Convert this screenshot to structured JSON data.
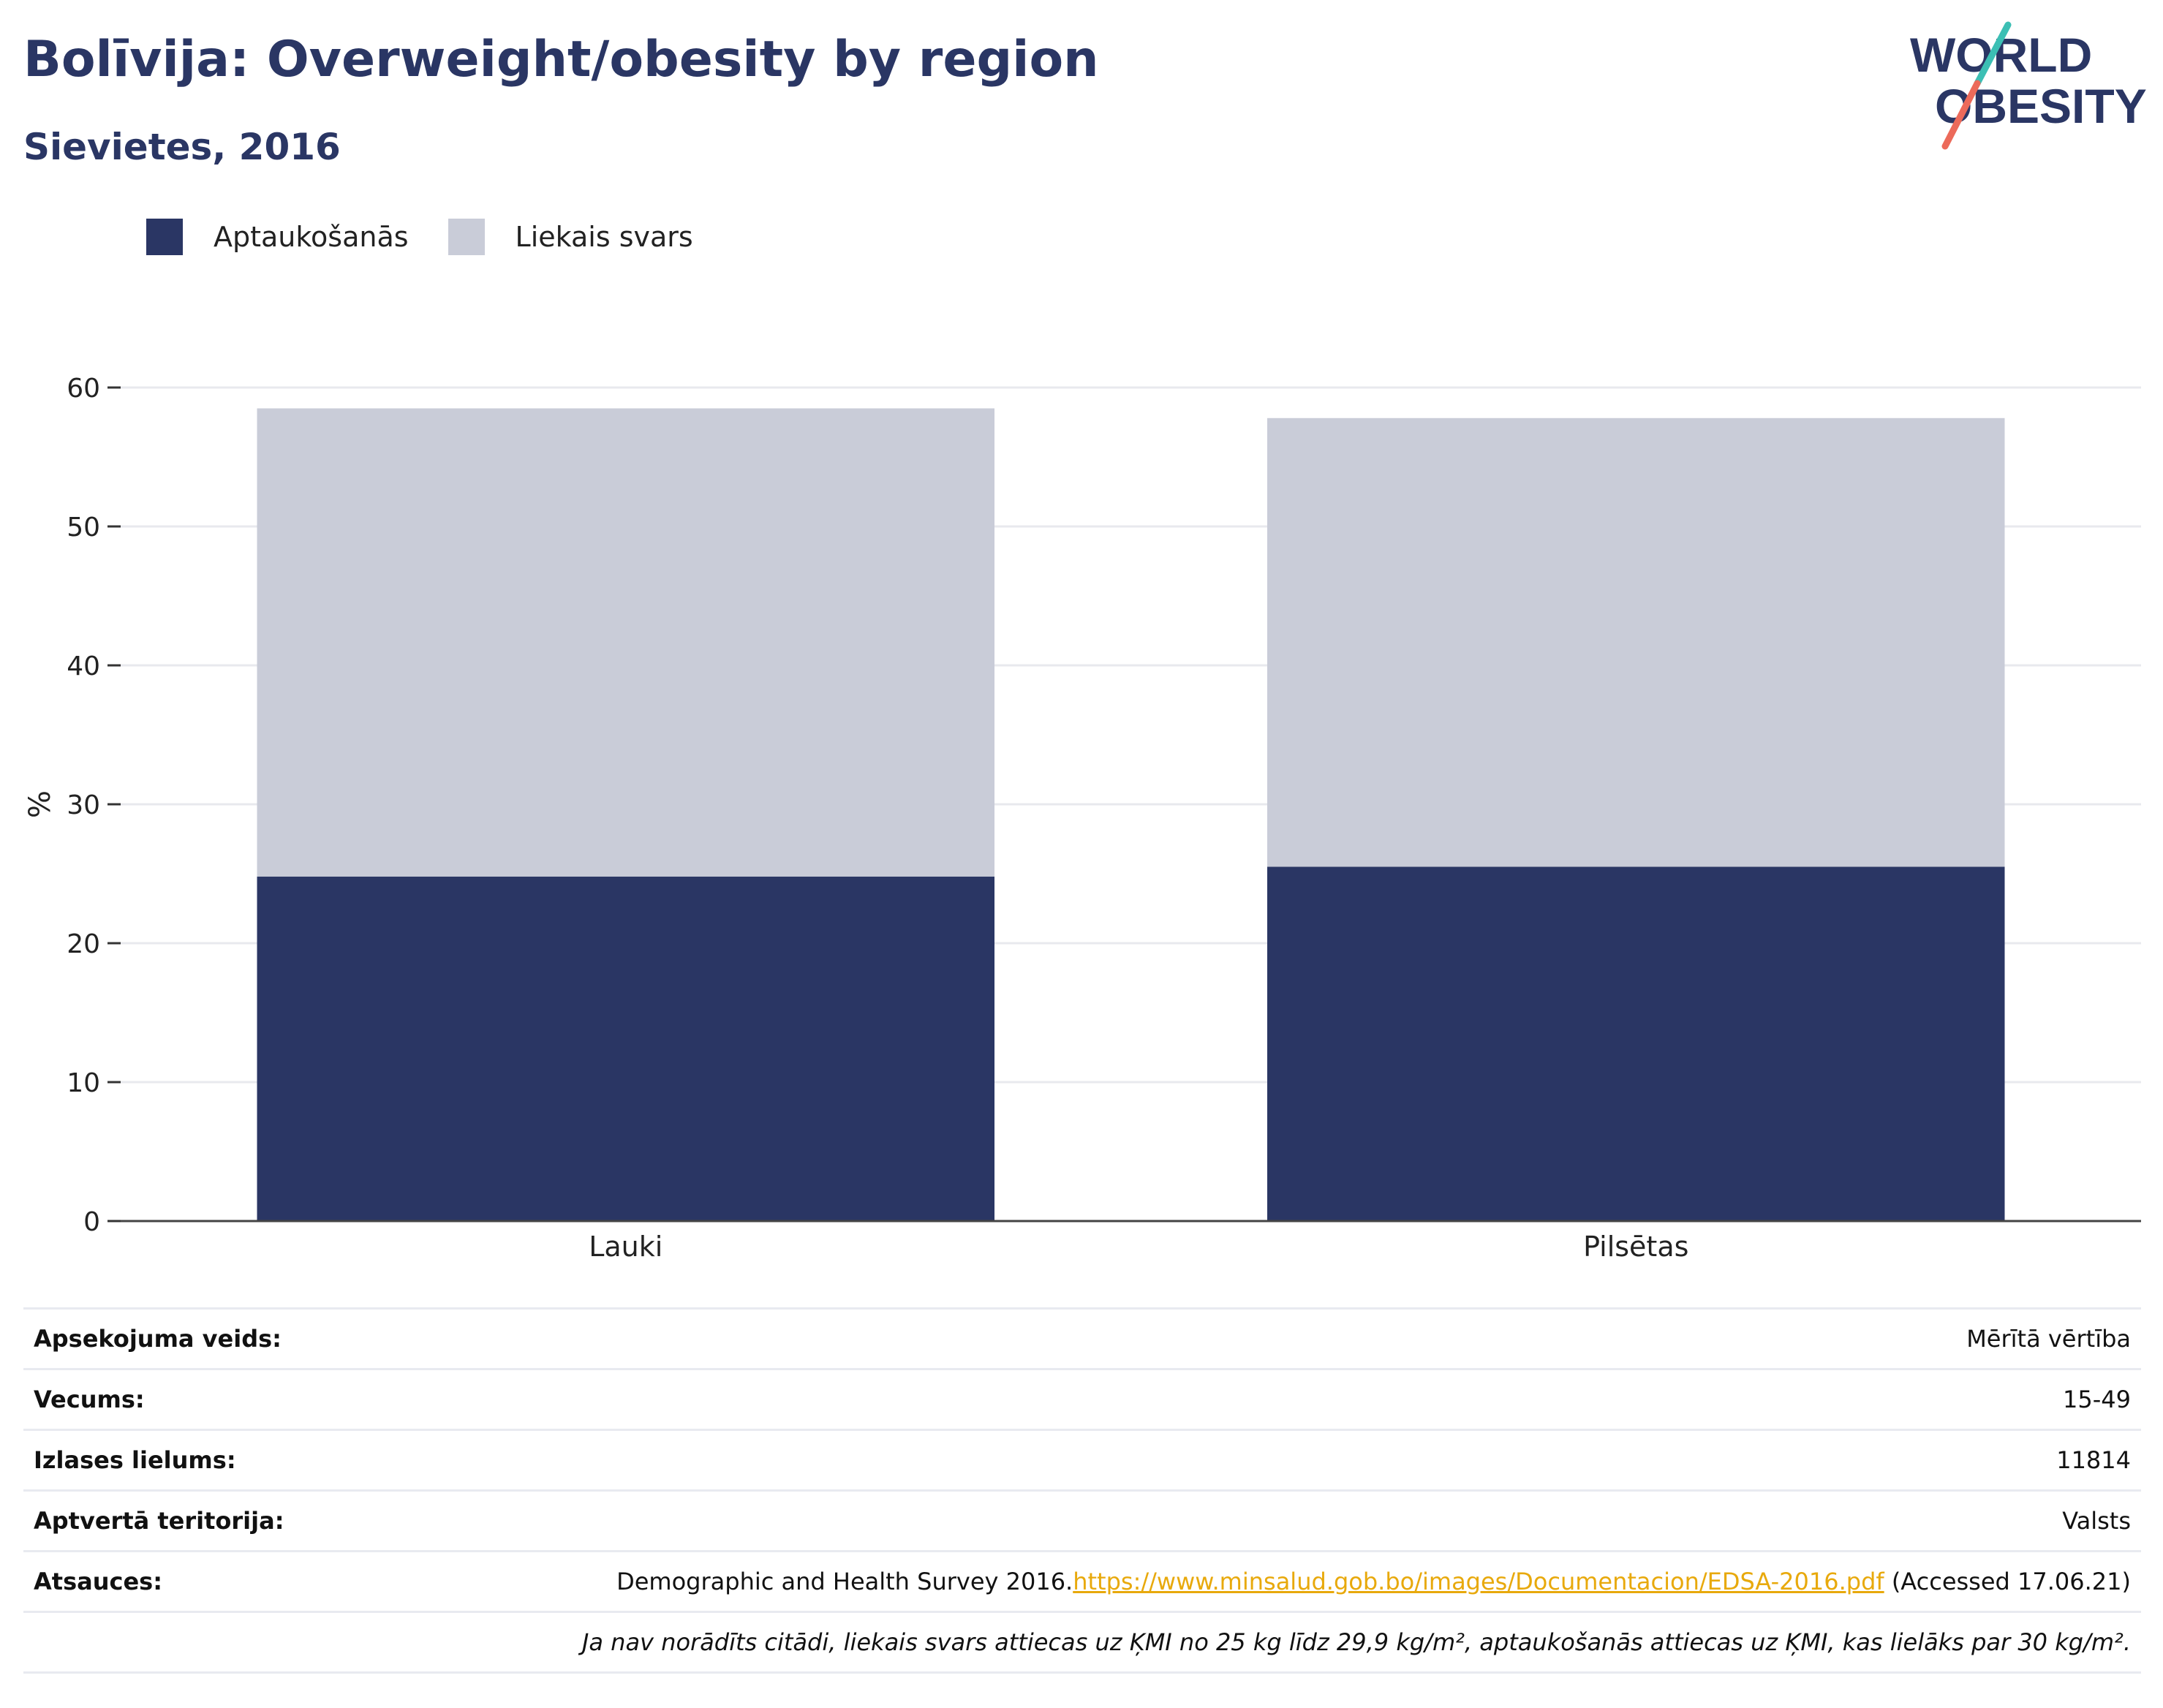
{
  "header": {
    "title": "Bolīvija: Overweight/obesity by region",
    "subtitle": "Sievietes, 2016"
  },
  "logo": {
    "line1": "WORLD",
    "line2": "OBESITY",
    "slash_colors": [
      "#3cbfb4",
      "#ec6a5a"
    ],
    "text_color": "#2a3664"
  },
  "legend": [
    {
      "label": "Aptaukošanās",
      "color": "#2a3664"
    },
    {
      "label": "Liekais svars",
      "color": "#c9ccd8"
    }
  ],
  "chart_data": {
    "type": "bar",
    "stacked": true,
    "categories": [
      "Lauki",
      "Pilsētas"
    ],
    "series": [
      {
        "name": "Aptaukošanās",
        "color": "#2a3664",
        "values": [
          24.8,
          25.5
        ]
      },
      {
        "name": "Liekais svars",
        "color": "#c9ccd8",
        "values": [
          33.7,
          32.3
        ]
      }
    ],
    "ylabel": "%",
    "ylim": [
      0,
      60
    ],
    "yticks": [
      0,
      10,
      20,
      30,
      40,
      50,
      60
    ],
    "grid": true
  },
  "info": {
    "survey_type": {
      "label": "Apsekojuma veids:",
      "value": "Mērītā vērtība"
    },
    "age": {
      "label": "Vecums:",
      "value": "15-49"
    },
    "sample_size": {
      "label": "Izlases lielums:",
      "value": "11814"
    },
    "coverage": {
      "label": "Aptvertā teritorija:",
      "value": "Valsts"
    },
    "references": {
      "label": "Atsauces:",
      "prefix": "Demographic and Health Survey 2016.",
      "link": "https://www.minsalud.gob.bo/images/Documentacion/EDSA-2016.pdf",
      "suffix": " (Accessed 17.06.21)"
    },
    "footnote": "Ja nav norādīts citādi, liekais svars attiecas uz ĶMI no 25 kg līdz 29,9 kg/m², aptaukošanās attiecas uz ĶMI, kas lielāks par 30 kg/m²."
  }
}
